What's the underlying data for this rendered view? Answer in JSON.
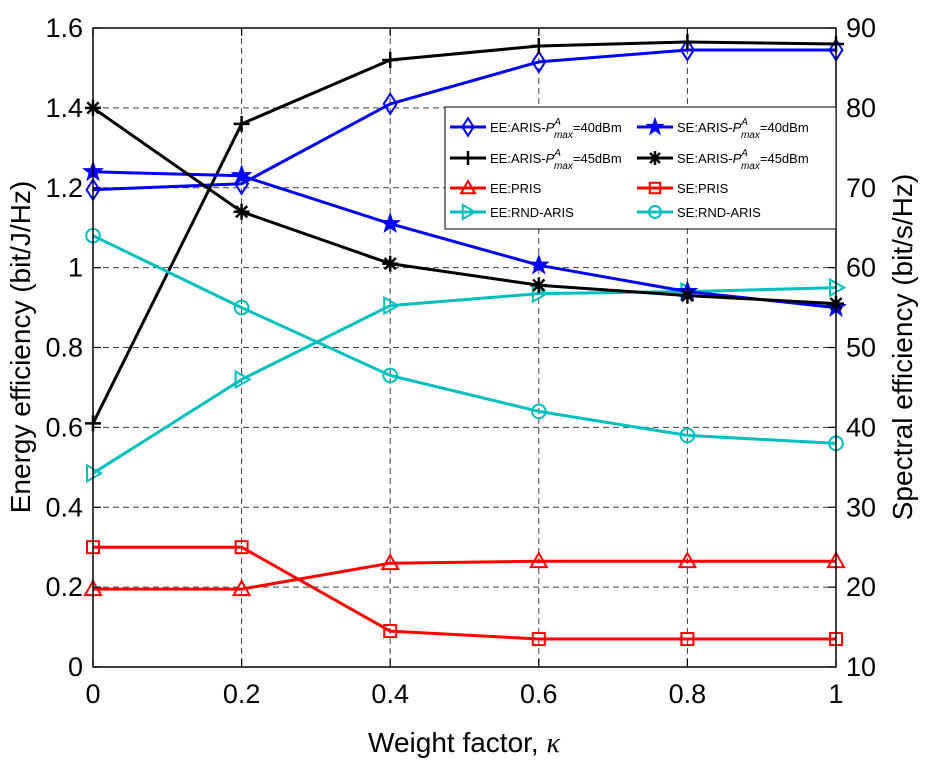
{
  "chart_data": {
    "type": "line",
    "xlabel": "Weight factor,",
    "xlabel_symbol": "κ",
    "ylabel_left": "Energy efficiency (bit/J/Hz)",
    "ylabel_right": "Spectral efficiency (bit/s/Hz)",
    "x": [
      0,
      0.2,
      0.4,
      0.6,
      0.8,
      1
    ],
    "x_ticks": [
      "0",
      "0.2",
      "0.4",
      "0.6",
      "0.8",
      "1"
    ],
    "ylim_left": [
      0,
      1.6
    ],
    "y_ticks_left": [
      "0",
      "0.2",
      "0.4",
      "0.6",
      "0.8",
      "1",
      "1.2",
      "1.4",
      "1.6"
    ],
    "ylim_right": [
      10,
      90
    ],
    "y_ticks_right": [
      "10",
      "20",
      "30",
      "40",
      "50",
      "60",
      "70",
      "80",
      "90"
    ],
    "grid": true,
    "legend_position": "top-right",
    "series": [
      {
        "name": "EE:ARIS-P_max^A=40dBm",
        "legend_pre": "EE:ARIS-",
        "legend_post": "=40dBm",
        "axis": "left",
        "color": "#0000ff",
        "marker": "diamond",
        "values": [
          1.195,
          1.21,
          1.41,
          1.515,
          1.545,
          1.545
        ]
      },
      {
        "name": "EE:ARIS-P_max^A=45dBm",
        "legend_pre": "EE:ARIS-",
        "legend_post": "=45dBm",
        "axis": "left",
        "color": "#000000",
        "marker": "plus",
        "values": [
          0.61,
          1.36,
          1.52,
          1.555,
          1.565,
          1.56
        ]
      },
      {
        "name": "EE:PRIS",
        "legend_pre": "EE:PRIS",
        "legend_post": "",
        "axis": "left",
        "color": "#ff0000",
        "marker": "triangle-up",
        "values": [
          0.195,
          0.195,
          0.26,
          0.265,
          0.265,
          0.265
        ]
      },
      {
        "name": "EE:RND-ARIS",
        "legend_pre": "EE:RND-ARIS",
        "legend_post": "",
        "axis": "left",
        "color": "#00bfbf",
        "marker": "triangle-right",
        "values": [
          0.485,
          0.72,
          0.905,
          0.935,
          0.94,
          0.95
        ]
      },
      {
        "name": "SE:ARIS-P_max^A=40dBm",
        "legend_pre": "SE:ARIS-",
        "legend_post": "=40dBm",
        "axis": "right",
        "color": "#0000ff",
        "marker": "star",
        "values": [
          72,
          71.5,
          65.5,
          60.3,
          57,
          55
        ]
      },
      {
        "name": "SE:ARIS-P_max^A=45dBm",
        "legend_pre": "SE:ARIS-",
        "legend_post": "=45dBm",
        "axis": "right",
        "color": "#000000",
        "marker": "asterisk",
        "values": [
          80,
          67,
          60.5,
          57.8,
          56.5,
          55.5
        ]
      },
      {
        "name": "SE:PRIS",
        "legend_pre": "SE:PRIS",
        "legend_post": "",
        "axis": "right",
        "color": "#ff0000",
        "marker": "square",
        "values": [
          25,
          25,
          14.5,
          13.5,
          13.5,
          13.5
        ]
      },
      {
        "name": "SE:RND-ARIS",
        "legend_pre": "SE:RND-ARIS",
        "legend_post": "",
        "axis": "right",
        "color": "#00bfbf",
        "marker": "circle",
        "values": [
          64,
          55,
          46.5,
          42,
          39,
          38
        ]
      }
    ],
    "legend_symbol": {
      "P": "P",
      "sup": "A",
      "sub": "max"
    }
  }
}
